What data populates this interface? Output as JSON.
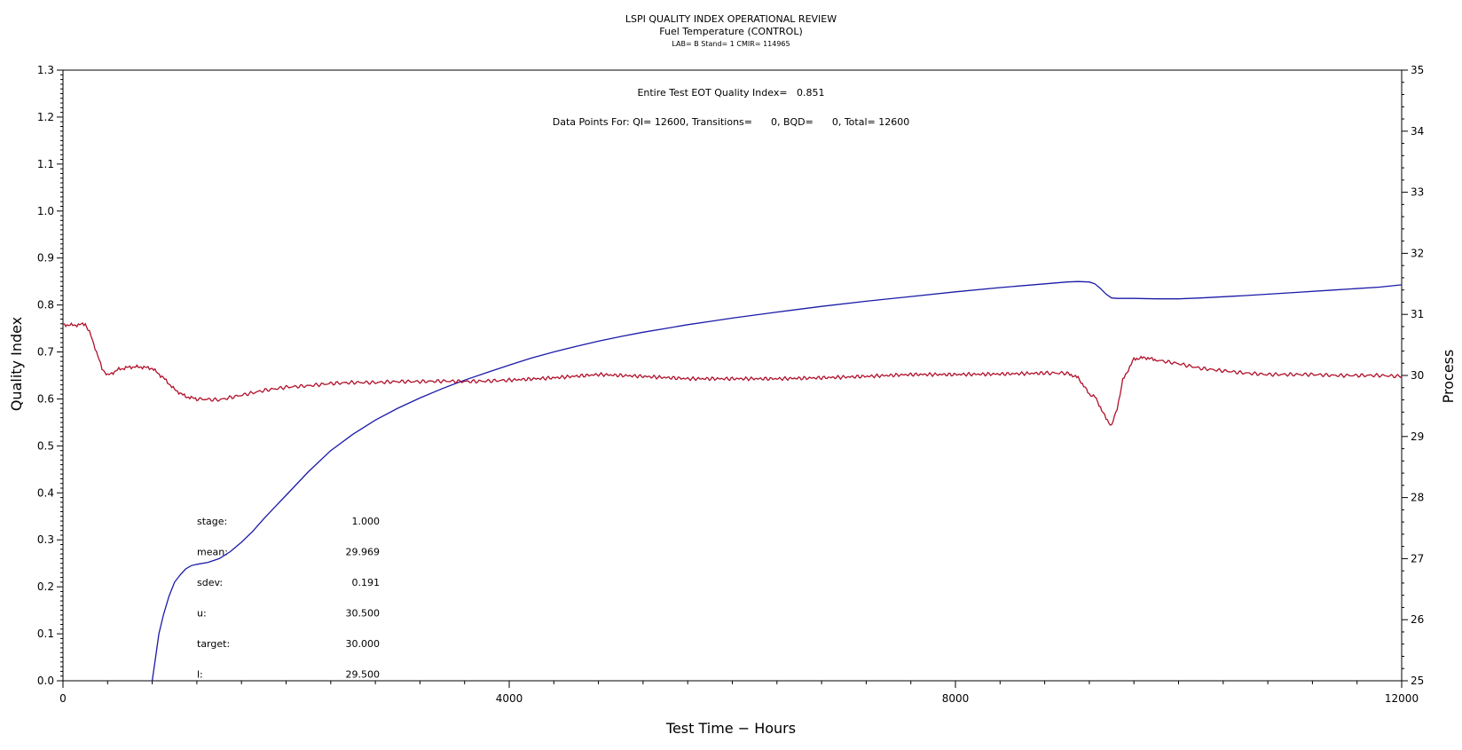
{
  "chart_data": {
    "type": "line",
    "title": "LSPI QUALITY INDEX OPERATIONAL REVIEW",
    "subtitle": "Fuel Temperature (CONTROL)",
    "subsubtitle": "LAB= B Stand= 1 CMIR= 114965",
    "xlabel": "Test Time − Hours",
    "ylabel": "Quality Index",
    "y2label": "Process",
    "xlim": [
      0,
      12000
    ],
    "ylim": [
      0.0,
      1.3
    ],
    "y2lim": [
      25,
      35
    ],
    "x_ticks": [
      "0",
      "4000",
      "8000",
      "12000"
    ],
    "y_ticks": [
      "0.0",
      "0.1",
      "0.2",
      "0.3",
      "0.4",
      "0.5",
      "0.6",
      "0.7",
      "0.8",
      "0.9",
      "1.0",
      "1.1",
      "1.2",
      "1.3"
    ],
    "y2_ticks": [
      "25",
      "26",
      "27",
      "28",
      "29",
      "30",
      "31",
      "32",
      "33",
      "34",
      "35"
    ],
    "annotations": {
      "quality_index": "Entire Test EOT Quality Index=   0.851",
      "data_points": "Data Points For: QI= 12600, Transitions=      0, BQD=      0, Total= 12600"
    },
    "stats": [
      {
        "label": "stage:",
        "value": "1.000"
      },
      {
        "label": "mean:",
        "value": "29.969"
      },
      {
        "label": "sdev:",
        "value": "0.191"
      },
      {
        "label": "u:",
        "value": "30.500"
      },
      {
        "label": "target:",
        "value": "30.000"
      },
      {
        "label": "l:",
        "value": "29.500"
      }
    ],
    "series": [
      {
        "axis": "left",
        "color": "#1a1aa8",
        "x": [
          800,
          830,
          860,
          900,
          950,
          1000,
          1050,
          1100,
          1150,
          1200,
          1300,
          1400,
          1500,
          1600,
          1700,
          1800,
          1900,
          2000,
          2200,
          2400,
          2600,
          2800,
          3000,
          3200,
          3400,
          3600,
          3800,
          4000,
          4200,
          4400,
          4600,
          4800,
          5000,
          5200,
          5400,
          5600,
          5800,
          6000,
          6400,
          6800,
          7200,
          7600,
          8000,
          8400,
          8800,
          9000,
          9100,
          9200,
          9250,
          9300,
          9350,
          9400,
          9450,
          9500,
          9600,
          9800,
          10000,
          10200,
          10600,
          11000,
          11400,
          11800,
          12000
        ],
        "y": [
          0.0,
          0.05,
          0.1,
          0.14,
          0.18,
          0.21,
          0.225,
          0.238,
          0.245,
          0.248,
          0.252,
          0.26,
          0.275,
          0.295,
          0.318,
          0.345,
          0.37,
          0.395,
          0.445,
          0.49,
          0.525,
          0.555,
          0.58,
          0.602,
          0.622,
          0.64,
          0.656,
          0.672,
          0.687,
          0.7,
          0.712,
          0.723,
          0.733,
          0.742,
          0.75,
          0.758,
          0.765,
          0.772,
          0.785,
          0.797,
          0.808,
          0.818,
          0.828,
          0.837,
          0.845,
          0.849,
          0.85,
          0.849,
          0.845,
          0.835,
          0.823,
          0.815,
          0.814,
          0.814,
          0.814,
          0.813,
          0.813,
          0.815,
          0.82,
          0.826,
          0.832,
          0.838,
          0.843
        ]
      },
      {
        "axis": "left",
        "color": "#b0102a",
        "x": [
          0,
          100,
          150,
          200,
          250,
          300,
          350,
          400,
          500,
          600,
          700,
          800,
          900,
          1000,
          1100,
          1200,
          1400,
          1600,
          1800,
          2000,
          2200,
          2400,
          2600,
          2800,
          3000,
          3200,
          3400,
          3600,
          3800,
          4000,
          4400,
          4800,
          5200,
          5600,
          6000,
          6400,
          6800,
          7200,
          7600,
          8000,
          8400,
          8800,
          9000,
          9100,
          9150,
          9200,
          9250,
          9300,
          9350,
          9400,
          9450,
          9500,
          9600,
          9700,
          9800,
          10000,
          10200,
          10400,
          10600,
          10800,
          11000,
          11200,
          11400,
          11600,
          11800,
          12000
        ],
        "y": [
          0.758,
          0.757,
          0.758,
          0.76,
          0.735,
          0.7,
          0.665,
          0.65,
          0.663,
          0.668,
          0.668,
          0.665,
          0.645,
          0.62,
          0.605,
          0.6,
          0.598,
          0.608,
          0.618,
          0.625,
          0.628,
          0.633,
          0.635,
          0.635,
          0.637,
          0.637,
          0.638,
          0.637,
          0.638,
          0.64,
          0.645,
          0.652,
          0.648,
          0.643,
          0.643,
          0.643,
          0.645,
          0.648,
          0.652,
          0.652,
          0.653,
          0.655,
          0.655,
          0.645,
          0.628,
          0.61,
          0.605,
          0.582,
          0.558,
          0.543,
          0.58,
          0.64,
          0.685,
          0.688,
          0.683,
          0.675,
          0.665,
          0.66,
          0.655,
          0.652,
          0.652,
          0.652,
          0.65,
          0.65,
          0.65,
          0.648
        ]
      }
    ]
  }
}
